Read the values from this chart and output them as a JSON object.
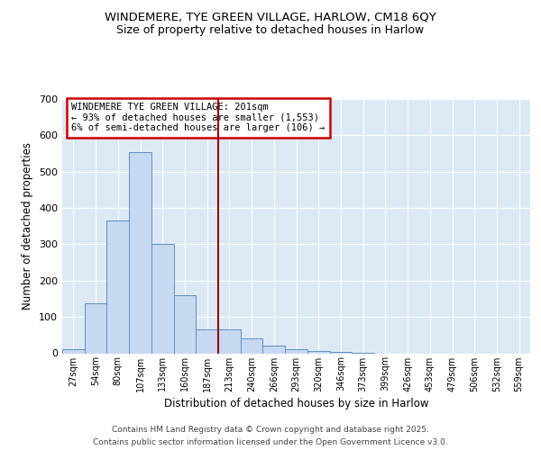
{
  "title1": "WINDEMERE, TYE GREEN VILLAGE, HARLOW, CM18 6QY",
  "title2": "Size of property relative to detached houses in Harlow",
  "xlabel": "Distribution of detached houses by size in Harlow",
  "ylabel": "Number of detached properties",
  "bar_labels": [
    "27sqm",
    "54sqm",
    "80sqm",
    "107sqm",
    "133sqm",
    "160sqm",
    "187sqm",
    "213sqm",
    "240sqm",
    "266sqm",
    "293sqm",
    "320sqm",
    "346sqm",
    "373sqm",
    "399sqm",
    "426sqm",
    "453sqm",
    "479sqm",
    "506sqm",
    "532sqm",
    "559sqm"
  ],
  "bar_values": [
    10,
    138,
    365,
    555,
    300,
    160,
    65,
    65,
    40,
    22,
    12,
    5,
    3,
    2,
    0,
    0,
    0,
    0,
    0,
    0,
    0
  ],
  "bar_color": "#c6d9f0",
  "bar_edge_color": "#5b8fc9",
  "background_color": "#dce9f5",
  "vline_x_index": 7,
  "vline_color": "#990000",
  "annotation_title": "WINDEMERE TYE GREEN VILLAGE: 201sqm",
  "annotation_line1": "← 93% of detached houses are smaller (1,553)",
  "annotation_line2": "6% of semi-detached houses are larger (106) →",
  "annotation_box_color": "#ffffff",
  "annotation_box_edge": "#cc0000",
  "ylim": [
    0,
    700
  ],
  "yticks": [
    0,
    100,
    200,
    300,
    400,
    500,
    600,
    700
  ],
  "footer1": "Contains HM Land Registry data © Crown copyright and database right 2025.",
  "footer2": "Contains public sector information licensed under the Open Government Licence v3.0."
}
